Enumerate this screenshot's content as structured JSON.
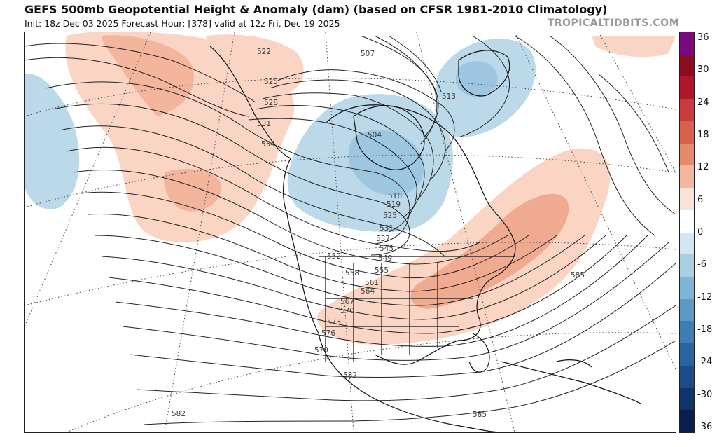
{
  "header": {
    "title": "GEFS 500mb Geopotential Height & Anomaly (dam) (based on CFSR 1981-2010 Climatology)",
    "subtitle": "Init: 18z Dec 03 2025   Forecast Hour: [378]   valid at 12z Fri, Dec 19 2025",
    "brand": "TROPICALTIDBITS.COM"
  },
  "colorbar": {
    "labels": [
      "36",
      "30",
      "24",
      "18",
      "12",
      "6",
      "0",
      "-6",
      "-12",
      "-18",
      "-24",
      "-30",
      "-36"
    ],
    "colors": [
      "#7a0a7e",
      "#8a0d22",
      "#b0162a",
      "#c83a3c",
      "#d8604f",
      "#e58a6d",
      "#f3b79f",
      "#fbe2d6",
      "#ffffff",
      "#d4e6f1",
      "#a9cfe3",
      "#7fb4d4",
      "#5b9ac5",
      "#3d7fb5",
      "#2a64a0",
      "#1c4b87",
      "#12336a",
      "#0a1f4e"
    ]
  },
  "map": {
    "contour_labels": [
      "507",
      "513",
      "504",
      "516",
      "519",
      "525",
      "531",
      "537",
      "543",
      "549",
      "555",
      "561",
      "564",
      "567",
      "570",
      "573",
      "576",
      "579",
      "582",
      "582",
      "585",
      "585",
      "552",
      "558",
      "522",
      "525",
      "528",
      "531",
      "534"
    ],
    "anomaly_palette": {
      "pos_light": "#fbd5c3",
      "pos_mid": "#f4b59d",
      "pos_strong": "#eb9c83",
      "neg_light": "#bcd9ea",
      "neg_mid": "#9dc6e0",
      "neg_strong": "#82b4d6"
    }
  }
}
